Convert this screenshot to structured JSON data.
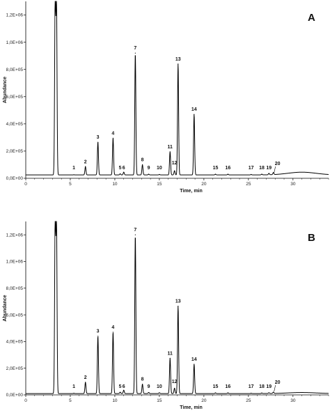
{
  "chart_data": [
    {
      "type": "line",
      "panel_label": "A",
      "xlabel": "Time, min",
      "ylabel": "Abundance",
      "xlim": [
        0,
        34
      ],
      "ylim": [
        0,
        1300000
      ],
      "x_ticks": [
        0,
        5,
        10,
        15,
        20,
        25,
        30
      ],
      "y_ticks": [
        0,
        200000,
        400000,
        600000,
        800000,
        1000000,
        1200000
      ],
      "y_tick_labels": [
        "0,0E+00",
        "2,0E+05",
        "4,0E+05",
        "6,0E+05",
        "8,0E+05",
        "1,0E+06",
        "1,2E+06"
      ],
      "baseline": 25000,
      "solvent_peaks": [
        {
          "x": 3.3,
          "y": 1300000
        },
        {
          "x": 3.45,
          "y": 1300000
        }
      ],
      "peaks": [
        {
          "label": "1",
          "x": 5.4,
          "y": 26000
        },
        {
          "label": "2",
          "x": 6.7,
          "y": 85000
        },
        {
          "label": "3",
          "x": 8.1,
          "y": 265000
        },
        {
          "label": "4",
          "x": 9.8,
          "y": 295000
        },
        {
          "label": "5",
          "x": 10.6,
          "y": 33000
        },
        {
          "label": "6",
          "x": 11.0,
          "y": 45000
        },
        {
          "label": "7",
          "x": 12.3,
          "y": 920000
        },
        {
          "label": "8",
          "x": 13.1,
          "y": 100000
        },
        {
          "label": "9",
          "x": 13.8,
          "y": 30000
        },
        {
          "label": "10",
          "x": 15.0,
          "y": 28000
        },
        {
          "label": "11",
          "x": 16.2,
          "y": 195000
        },
        {
          "label": "12",
          "x": 16.7,
          "y": 55000
        },
        {
          "label": "13",
          "x": 17.1,
          "y": 840000
        },
        {
          "label": "14",
          "x": 18.9,
          "y": 470000
        },
        {
          "label": "15",
          "x": 21.3,
          "y": 30000
        },
        {
          "label": "16",
          "x": 22.7,
          "y": 30000
        },
        {
          "label": "17",
          "x": 25.3,
          "y": 28000
        },
        {
          "label": "18",
          "x": 26.5,
          "y": 30000
        },
        {
          "label": "19",
          "x": 27.3,
          "y": 35000
        },
        {
          "label": "20",
          "x": 27.8,
          "y": 40000
        }
      ]
    },
    {
      "type": "line",
      "panel_label": "B",
      "xlabel": "Time, min",
      "ylabel": "Abundance",
      "xlim": [
        0,
        34
      ],
      "ylim": [
        0,
        1300000
      ],
      "x_ticks": [
        0,
        5,
        10,
        15,
        20,
        25,
        30
      ],
      "y_ticks": [
        0,
        200000,
        400000,
        600000,
        800000,
        1000000,
        1200000
      ],
      "y_tick_labels": [
        "0,0E+00",
        "2,0E+05",
        "4,0E+05",
        "6,0E+05",
        "8,0E+05",
        "1,0E+06",
        "1,2E+06"
      ],
      "baseline": 10000,
      "solvent_peaks": [
        {
          "x": 3.3,
          "y": 1300000
        },
        {
          "x": 3.45,
          "y": 1300000
        }
      ],
      "peaks": [
        {
          "label": "1",
          "x": 5.4,
          "y": 12000
        },
        {
          "label": "2",
          "x": 6.7,
          "y": 95000
        },
        {
          "label": "3",
          "x": 8.1,
          "y": 440000
        },
        {
          "label": "4",
          "x": 9.8,
          "y": 470000
        },
        {
          "label": "5",
          "x": 10.6,
          "y": 20000
        },
        {
          "label": "6",
          "x": 11.0,
          "y": 35000
        },
        {
          "label": "7",
          "x": 12.3,
          "y": 1200000
        },
        {
          "label": "8",
          "x": 13.1,
          "y": 80000
        },
        {
          "label": "9",
          "x": 13.8,
          "y": 18000
        },
        {
          "label": "10",
          "x": 15.0,
          "y": 16000
        },
        {
          "label": "11",
          "x": 16.2,
          "y": 275000
        },
        {
          "label": "12",
          "x": 16.7,
          "y": 50000
        },
        {
          "label": "13",
          "x": 17.1,
          "y": 665000
        },
        {
          "label": "14",
          "x": 18.9,
          "y": 230000
        },
        {
          "label": "15",
          "x": 21.3,
          "y": 15000
        },
        {
          "label": "16",
          "x": 22.7,
          "y": 15000
        },
        {
          "label": "17",
          "x": 25.3,
          "y": 12000
        },
        {
          "label": "18",
          "x": 26.5,
          "y": 14000
        },
        {
          "label": "19",
          "x": 27.3,
          "y": 16000
        },
        {
          "label": "20",
          "x": 27.8,
          "y": 20000
        }
      ]
    }
  ]
}
